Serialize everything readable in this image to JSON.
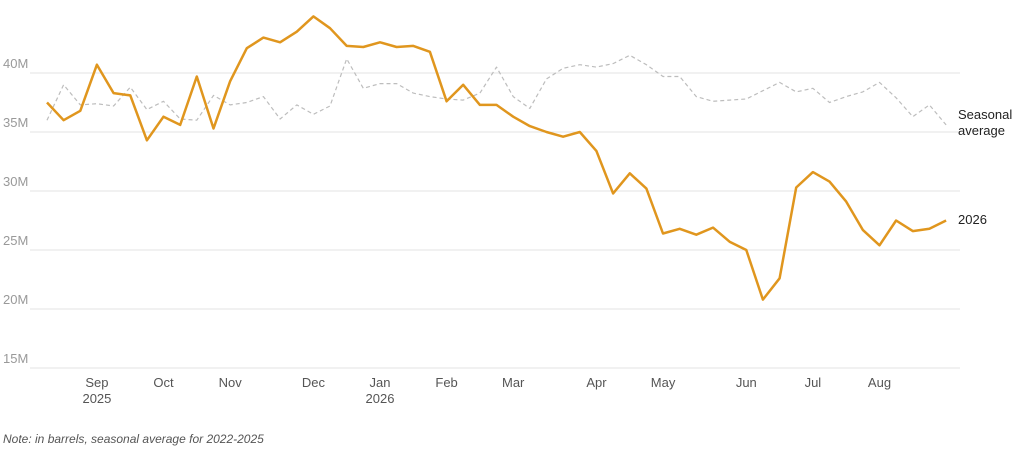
{
  "chart_data": {
    "type": "line",
    "note": "Note: in barrels, seasonal average for 2022-2025",
    "categories": [
      null,
      null,
      null,
      "Sep 2025",
      null,
      null,
      null,
      "Oct",
      null,
      null,
      null,
      "Nov",
      null,
      null,
      null,
      null,
      "Dec",
      null,
      null,
      null,
      "Jan 2026",
      null,
      null,
      null,
      "Feb",
      null,
      null,
      null,
      "Mar",
      null,
      null,
      null,
      null,
      "Apr",
      null,
      null,
      null,
      "May",
      null,
      null,
      null,
      null,
      "Jun",
      null,
      null,
      null,
      "Jul",
      null,
      null,
      null,
      "Aug",
      null,
      null,
      null,
      null
    ],
    "series": [
      {
        "name": "Seasonal average",
        "color": "#bdbdbd",
        "dashed": true,
        "values": [
          36.0,
          39.0,
          37.3,
          37.4,
          37.2,
          38.8,
          36.9,
          37.6,
          36.1,
          36.0,
          38.1,
          37.3,
          37.5,
          38.0,
          36.1,
          37.3,
          36.5,
          37.2,
          41.2,
          38.7,
          39.1,
          39.1,
          38.3,
          38.0,
          37.8,
          37.7,
          38.3,
          40.5,
          38.0,
          37.0,
          39.5,
          40.4,
          40.7,
          40.5,
          40.8,
          41.5,
          40.7,
          39.7,
          39.7,
          38.0,
          37.6,
          37.7,
          37.8,
          38.5,
          39.2,
          38.4,
          38.7,
          37.5,
          38.0,
          38.4,
          39.2,
          37.9,
          36.3,
          37.3,
          35.6
        ]
      },
      {
        "name": "2026",
        "color": "#e0961e",
        "dashed": false,
        "values": [
          37.5,
          36.0,
          36.8,
          40.7,
          38.3,
          38.1,
          34.3,
          36.3,
          35.6,
          39.7,
          35.3,
          39.3,
          42.1,
          43.0,
          42.6,
          43.5,
          44.8,
          43.8,
          42.3,
          42.2,
          42.6,
          42.2,
          42.3,
          41.8,
          37.6,
          39.0,
          37.3,
          37.3,
          36.3,
          35.5,
          35.0,
          34.6,
          35.0,
          33.4,
          29.8,
          31.5,
          30.2,
          26.4,
          26.8,
          26.3,
          26.9,
          25.7,
          25.0,
          20.8,
          22.6,
          30.3,
          31.6,
          30.8,
          29.1,
          26.7,
          25.4,
          27.5,
          26.6,
          26.8,
          27.5
        ]
      }
    ],
    "ylim": [
      15,
      45
    ],
    "yticks": [
      {
        "value": 15,
        "label": "15M"
      },
      {
        "value": 20,
        "label": "20M"
      },
      {
        "value": 25,
        "label": "25M"
      },
      {
        "value": 30,
        "label": "30M"
      },
      {
        "value": 35,
        "label": "35M"
      },
      {
        "value": 40,
        "label": "40M"
      }
    ],
    "grid": true
  }
}
